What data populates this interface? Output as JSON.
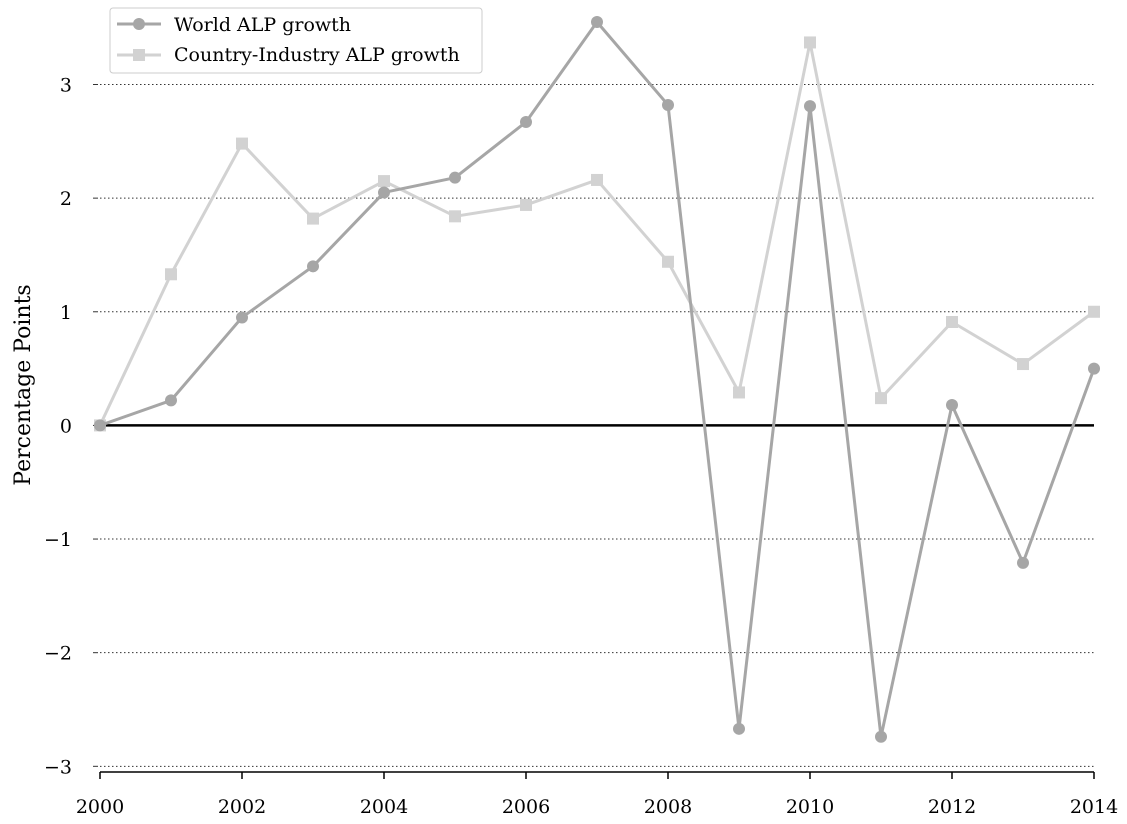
{
  "chart_data": {
    "type": "line",
    "title": "",
    "xlabel": "",
    "ylabel": "Percentage Points",
    "x": [
      2000,
      2001,
      2002,
      2003,
      2004,
      2005,
      2006,
      2007,
      2008,
      2009,
      2010,
      2011,
      2012,
      2013,
      2014
    ],
    "xlim": [
      2000,
      2014
    ],
    "ylim": [
      -3.05,
      3.55
    ],
    "xticks": [
      2000,
      2002,
      2004,
      2006,
      2008,
      2010,
      2012,
      2014
    ],
    "yticks": [
      -3,
      -2,
      -1,
      0,
      1,
      2,
      3
    ],
    "xtick_labels": [
      "2000",
      "2002",
      "2004",
      "2006",
      "2008",
      "2010",
      "2012",
      "2014"
    ],
    "ytick_labels": [
      "−3",
      "−2",
      "−1",
      "0",
      "1",
      "2",
      "3"
    ],
    "grid": "horizontal-dotted",
    "zero_line": true,
    "legend_position": "top-left",
    "series": [
      {
        "name": "World ALP growth",
        "marker": "circle",
        "color": "#a6a6a6",
        "values": [
          0.0,
          0.22,
          0.95,
          1.4,
          2.05,
          2.18,
          2.67,
          3.55,
          2.82,
          -2.67,
          2.81,
          -2.74,
          0.18,
          -1.21,
          0.5
        ]
      },
      {
        "name": "Country-Industry ALP growth",
        "marker": "square",
        "color": "#d2d2d2",
        "values": [
          0.0,
          1.33,
          2.48,
          1.82,
          2.15,
          1.84,
          1.94,
          2.16,
          1.44,
          0.29,
          3.37,
          0.24,
          0.91,
          0.54,
          1.0
        ]
      }
    ]
  }
}
